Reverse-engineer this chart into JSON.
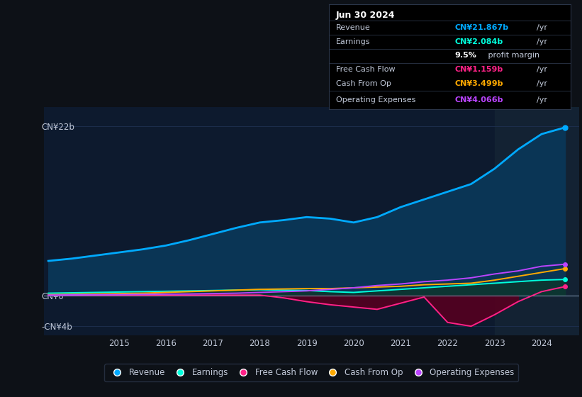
{
  "bg_color": "#0d1117",
  "plot_bg_color": "#0d1a2e",
  "grid_color": "#1e3050",
  "text_color": "#c0c8d8",
  "years_x": [
    2013.5,
    2014.0,
    2014.5,
    2015.0,
    2015.5,
    2016.0,
    2016.5,
    2017.0,
    2017.5,
    2018.0,
    2018.5,
    2019.0,
    2019.5,
    2020.0,
    2020.5,
    2021.0,
    2021.5,
    2022.0,
    2022.5,
    2023.0,
    2023.5,
    2024.0,
    2024.5
  ],
  "revenue": [
    4.5,
    4.8,
    5.2,
    5.6,
    6.0,
    6.5,
    7.2,
    8.0,
    8.8,
    9.5,
    9.8,
    10.2,
    10.0,
    9.5,
    10.2,
    11.5,
    12.5,
    13.5,
    14.5,
    16.5,
    19.0,
    21.0,
    21.867
  ],
  "earnings": [
    0.3,
    0.35,
    0.4,
    0.45,
    0.5,
    0.55,
    0.6,
    0.65,
    0.7,
    0.75,
    0.7,
    0.65,
    0.5,
    0.4,
    0.6,
    0.8,
    1.0,
    1.2,
    1.4,
    1.6,
    1.8,
    2.0,
    2.084
  ],
  "free_cash_flow": [
    0.05,
    0.05,
    0.05,
    0.05,
    0.05,
    0.05,
    0.05,
    0.05,
    0.05,
    0.05,
    -0.3,
    -0.8,
    -1.2,
    -1.5,
    -1.8,
    -1.0,
    -0.2,
    -3.5,
    -4.0,
    -2.5,
    -0.8,
    0.5,
    1.159
  ],
  "cash_from_op": [
    0.1,
    0.15,
    0.2,
    0.25,
    0.3,
    0.4,
    0.5,
    0.6,
    0.7,
    0.8,
    0.85,
    0.9,
    0.9,
    1.0,
    1.1,
    1.2,
    1.4,
    1.5,
    1.6,
    2.0,
    2.5,
    3.0,
    3.499
  ],
  "op_expenses": [
    0.05,
    0.08,
    0.1,
    0.12,
    0.15,
    0.18,
    0.2,
    0.25,
    0.3,
    0.4,
    0.5,
    0.6,
    0.8,
    1.0,
    1.3,
    1.5,
    1.8,
    2.0,
    2.3,
    2.8,
    3.2,
    3.8,
    4.066
  ],
  "revenue_color": "#00aaff",
  "earnings_color": "#00ffdd",
  "fcf_color": "#ff2288",
  "cashop_color": "#ffaa00",
  "opex_color": "#bb44ff",
  "revenue_fill": "#0a3555",
  "earnings_fill": "#0d3530",
  "fcf_fill_neg": "#550020",
  "ylim": [
    -5.2,
    24.5
  ],
  "highlight_x_start": 2023.0,
  "info_box": {
    "date": "Jun 30 2024",
    "revenue_label": "Revenue",
    "revenue_val": "CN¥21.867b",
    "earnings_label": "Earnings",
    "earnings_val": "CN¥2.084b",
    "margin_val": "9.5%",
    "margin_text": " profit margin",
    "fcf_label": "Free Cash Flow",
    "fcf_val": "CN¥1.159b",
    "cashop_label": "Cash From Op",
    "cashop_val": "CN¥3.499b",
    "opex_label": "Operating Expenses",
    "opex_val": "CN¥4.066b"
  },
  "legend_items": [
    {
      "label": "Revenue",
      "color": "#00aaff"
    },
    {
      "label": "Earnings",
      "color": "#00ffdd"
    },
    {
      "label": "Free Cash Flow",
      "color": "#ff2288"
    },
    {
      "label": "Cash From Op",
      "color": "#ffaa00"
    },
    {
      "label": "Operating Expenses",
      "color": "#bb44ff"
    }
  ],
  "xtick_vals": [
    2015,
    2016,
    2017,
    2018,
    2019,
    2020,
    2021,
    2022,
    2023,
    2024
  ]
}
